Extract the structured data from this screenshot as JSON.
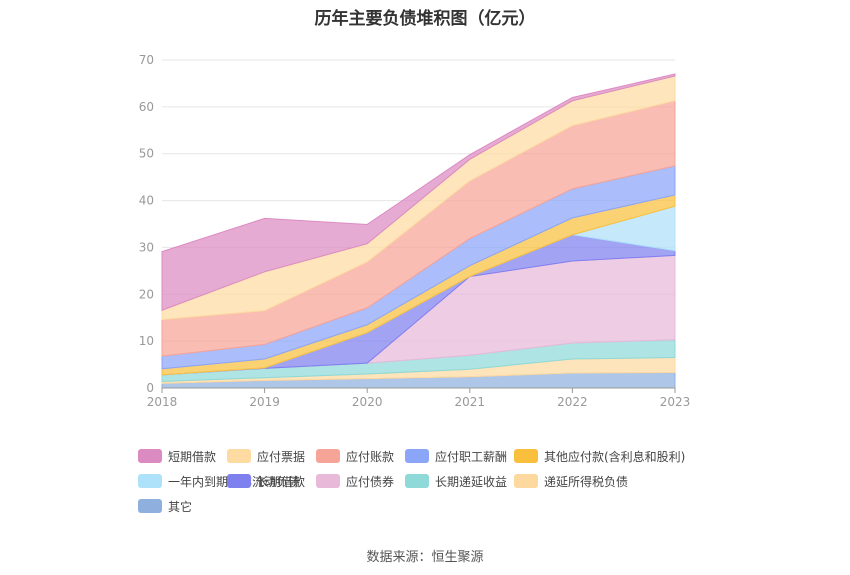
{
  "chart_data": {
    "type": "area",
    "title": "历年主要负债堆积图（亿元）",
    "source": "数据来源：恒生聚源",
    "x": [
      "2018",
      "2019",
      "2020",
      "2021",
      "2022",
      "2023"
    ],
    "ylim": [
      0,
      70
    ],
    "yticks": [
      0,
      10,
      20,
      30,
      40,
      50,
      60,
      70
    ],
    "ytick_labels": [
      "0",
      "10",
      "20",
      "30",
      "40",
      "50",
      "60",
      "70"
    ],
    "xlabel": "",
    "ylabel": "",
    "grid": "horizontal",
    "stacked": true,
    "series": [
      {
        "name": "其它",
        "color": "#8fb0df",
        "values": [
          1.0,
          1.6,
          2.0,
          2.4,
          3.2,
          3.3
        ]
      },
      {
        "name": "递延所得税负债",
        "color": "#fdd9a0",
        "values": [
          0.4,
          0.6,
          1.0,
          1.6,
          3.0,
          3.2
        ]
      },
      {
        "name": "长期递延收益",
        "color": "#8fd9d8",
        "values": [
          1.4,
          2.0,
          2.3,
          3.0,
          3.4,
          3.8
        ]
      },
      {
        "name": "应付债券",
        "color": "#e8b9d9",
        "values": [
          0,
          0,
          0,
          16.8,
          17.5,
          18.0
        ]
      },
      {
        "name": "长期借款",
        "color": "#7f80f0",
        "values": [
          0,
          0.1,
          6.5,
          0,
          5.6,
          1.0
        ]
      },
      {
        "name": "一年内到期的非流动负债",
        "color": "#aee1fa",
        "values": [
          0,
          0,
          0,
          0,
          0,
          9.5
        ]
      },
      {
        "name": "其他应付款(含利息和股利)",
        "color": "#fac03d",
        "values": [
          1.3,
          1.9,
          1.7,
          2.3,
          3.6,
          2.4
        ]
      },
      {
        "name": "应付职工薪酬",
        "color": "#8ba5f9",
        "values": [
          2.7,
          3.1,
          3.6,
          5.8,
          6.2,
          6.2
        ]
      },
      {
        "name": "应付账款",
        "color": "#f6a497",
        "values": [
          7.8,
          7.2,
          9.8,
          12.3,
          13.5,
          13.9
        ]
      },
      {
        "name": "应付票据",
        "color": "#fddba1",
        "values": [
          2.0,
          8.3,
          3.9,
          4.6,
          5.3,
          5.3
        ]
      },
      {
        "name": "短期借款",
        "color": "#dc8bc2",
        "values": [
          12.5,
          11.4,
          4.1,
          1.0,
          0.7,
          0.4
        ]
      }
    ],
    "legend": [
      "短期借款",
      "应付票据",
      "应付账款",
      "应付职工薪酬",
      "其他应付款(含利息和股利)",
      "一年内到期的非流动负债",
      "长期借款",
      "应付债券",
      "长期递延收益",
      "递延所得税负债",
      "其它"
    ]
  }
}
